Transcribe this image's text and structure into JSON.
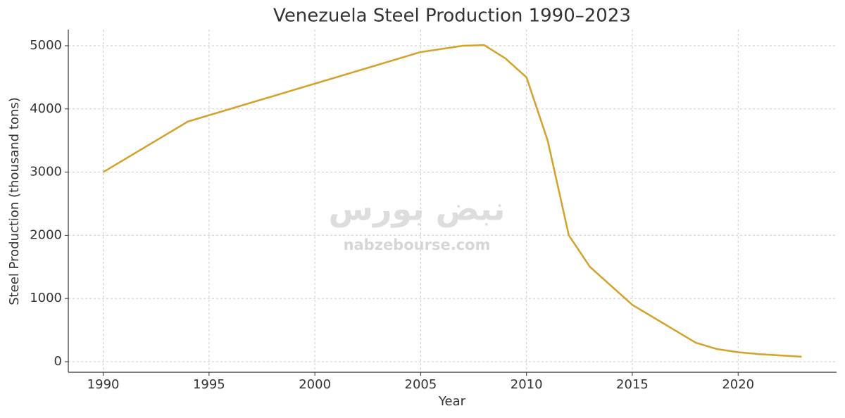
{
  "chart_data": {
    "type": "line",
    "title": "Venezuela Steel Production 1990–2023",
    "x_label": "Year",
    "y_label": "Steel Production (thousand tons)",
    "watermark": "nabzebourse.com",
    "watermark_logo": "نبض بورس",
    "x": [
      1990,
      1994,
      2000,
      2005,
      2007,
      2008,
      2009,
      2010,
      2011,
      2012,
      2013,
      2015,
      2018,
      2019,
      2020,
      2021,
      2023
    ],
    "series": [
      {
        "name": "Steel Production",
        "color": "#d4a12a",
        "values": [
          3000,
          3800,
          4400,
          4900,
          5000,
          5010,
          4800,
          4500,
          3500,
          2000,
          1500,
          900,
          300,
          200,
          150,
          120,
          80
        ]
      }
    ],
    "xlim": [
      1988.35,
      2024.65
    ],
    "xticks": [
      1990,
      1995,
      2000,
      2005,
      2010,
      2015,
      2020
    ],
    "ylim": [
      -167,
      5256
    ],
    "yticks": [
      0,
      1000,
      2000,
      3000,
      4000,
      5000
    ],
    "grid": true
  }
}
